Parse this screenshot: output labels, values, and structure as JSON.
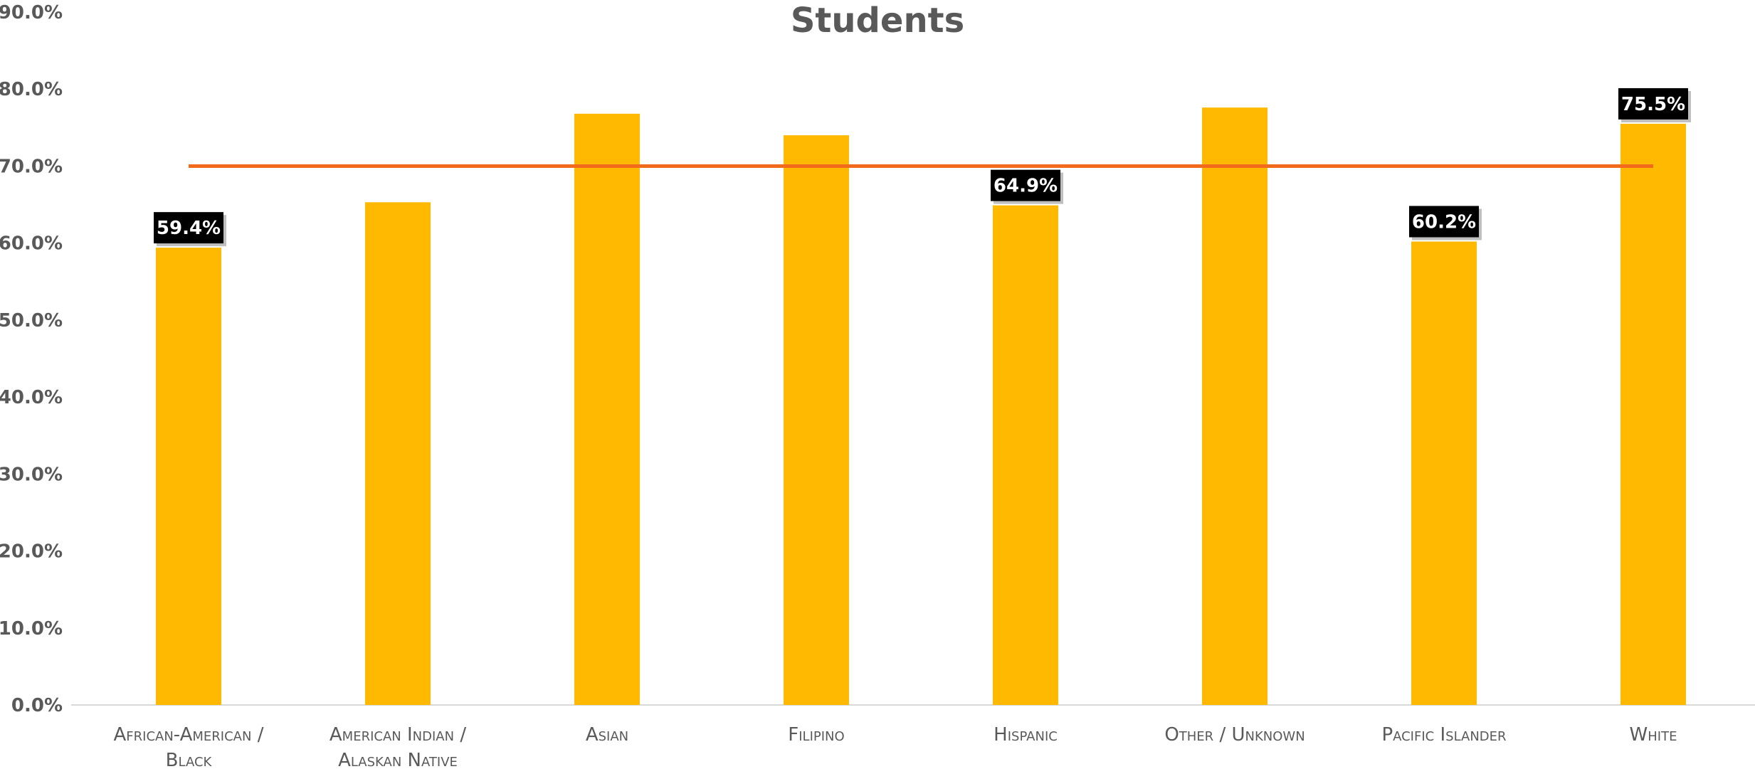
{
  "chart_data": {
    "type": "bar",
    "title": "Students",
    "categories": [
      [
        "African-American /",
        "Black"
      ],
      [
        "American Indian /",
        "Alaskan Native"
      ],
      [
        "Asian"
      ],
      [
        "Filipino"
      ],
      [
        "Hispanic"
      ],
      [
        "Other / Unknown"
      ],
      [
        "Pacific Islander"
      ],
      [
        "White"
      ]
    ],
    "series": [
      {
        "values": [
          59.4,
          65.3,
          76.8,
          74.0,
          64.9,
          77.6,
          60.2,
          75.5
        ],
        "color": "#FFB900"
      }
    ],
    "data_labels": [
      {
        "index": 0,
        "text": "59.4%"
      },
      {
        "index": 4,
        "text": "64.9%"
      },
      {
        "index": 6,
        "text": "60.2%"
      },
      {
        "index": 7,
        "text": "75.5%"
      }
    ],
    "reference_line": {
      "value": 70.0,
      "color": "#F26B1D"
    },
    "yticks": [
      "0.0%",
      "10.0%",
      "20.0%",
      "30.0%",
      "40.0%",
      "50.0%",
      "60.0%",
      "70.0%",
      "80.0%",
      "90.0%"
    ],
    "ylim": [
      0,
      90
    ],
    "grid": false,
    "legend": "none"
  }
}
